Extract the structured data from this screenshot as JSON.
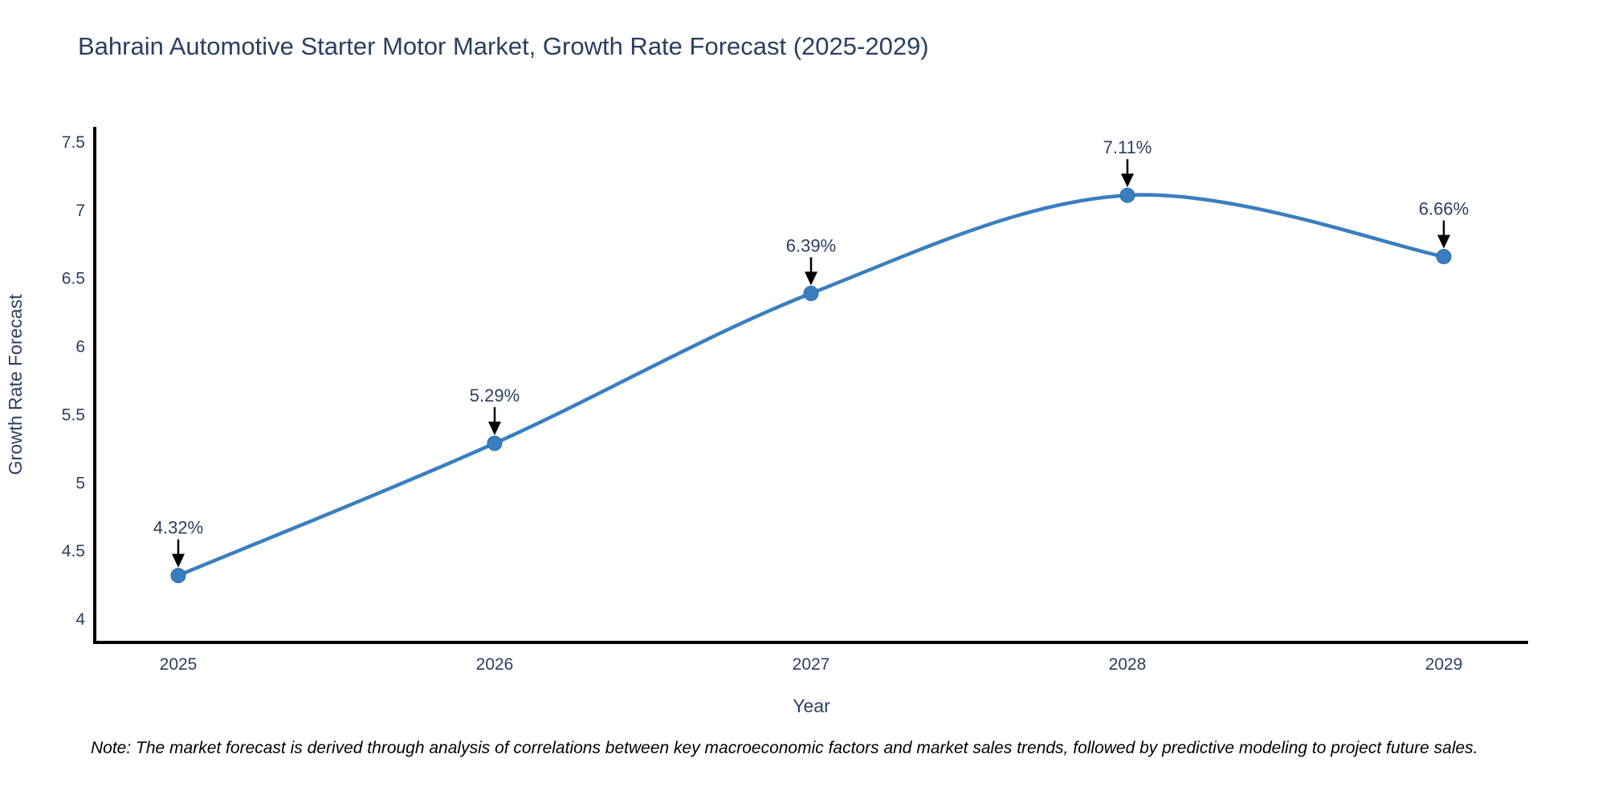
{
  "figure": {
    "title": "Bahrain Automotive Starter Motor Market, Growth Rate Forecast (2025-2029)",
    "note": "Note: The market forecast is derived through analysis of correlations between key macroeconomic factors and market sales trends, followed by predictive modeling to project future sales."
  },
  "chart_data": {
    "type": "line",
    "line_shape": "spline",
    "title": "Bahrain Automotive Starter Motor Market, Growth Rate Forecast (2025-2029)",
    "x": [
      2025,
      2026,
      2027,
      2028,
      2029
    ],
    "values": [
      4.32,
      5.29,
      6.39,
      7.11,
      6.66
    ],
    "point_labels": [
      "4.32%",
      "5.29%",
      "6.39%",
      "7.11%",
      "6.66%"
    ],
    "xlabel": "Year",
    "ylabel": "Growth Rate Forecast",
    "xtick_labels": [
      "2025",
      "2026",
      "2027",
      "2028",
      "2029"
    ],
    "yticks": [
      4,
      4.5,
      5,
      5.5,
      6,
      6.5,
      7,
      7.5
    ],
    "ytick_labels": [
      "4",
      "4.5",
      "5",
      "5.5",
      "6",
      "6.5",
      "7",
      "7.5"
    ],
    "ylim": [
      3.83,
      7.65
    ],
    "xlim": [
      2024.74,
      2029.27
    ],
    "grid": false,
    "legend": false,
    "markers": true,
    "annotations_have_arrows": true,
    "colors": {
      "line": "#3a7ebf",
      "marker": "#3a7ebf",
      "marker_edge": "#2a6ba3",
      "axis_line": "#000000",
      "text": "#2a3f5f",
      "annotation_text": "#2a3f5f",
      "annotation_arrow": "#000000",
      "note_text": "#000000",
      "background": "#ffffff"
    }
  }
}
